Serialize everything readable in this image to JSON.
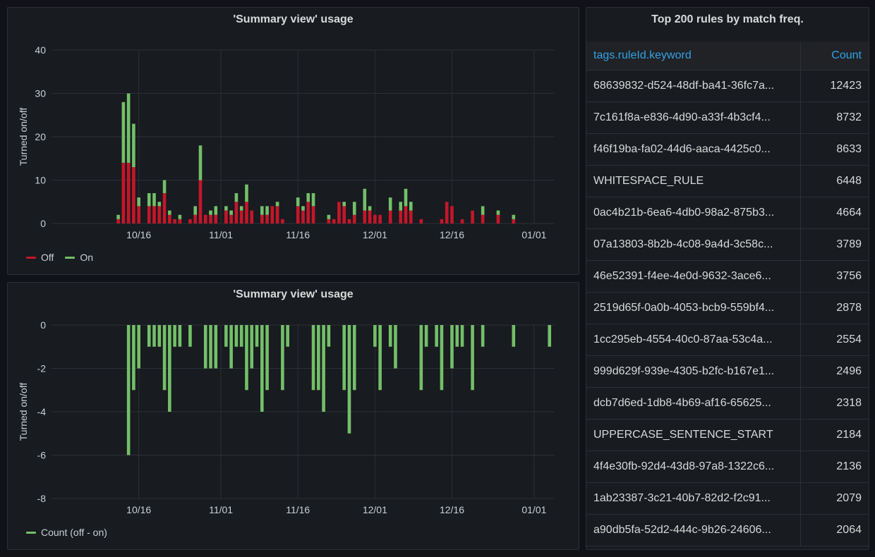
{
  "panels": {
    "top_chart": {
      "title": "'Summary view' usage",
      "ylabel": "Turned on/off",
      "legend": [
        {
          "label": "Off",
          "color": "#c4162a"
        },
        {
          "label": "On",
          "color": "#73bf69"
        }
      ]
    },
    "bottom_chart": {
      "title": "'Summary view' usage",
      "ylabel": "Turned on/off",
      "legend": [
        {
          "label": "Count (off - on)",
          "color": "#73bf69"
        }
      ]
    },
    "table": {
      "title": "Top 200 rules by match freq.",
      "columns": [
        "tags.ruleId.keyword",
        "Count"
      ],
      "rows": [
        [
          "68639832-d524-48df-ba41-36fc7a...",
          "12423"
        ],
        [
          "7c161f8a-e836-4d90-a33f-4b3cf4...",
          "8732"
        ],
        [
          "f46f19ba-fa02-44d6-aaca-4425c0...",
          "8633"
        ],
        [
          "WHITESPACE_RULE",
          "6448"
        ],
        [
          "0ac4b21b-6ea6-4db0-98a2-875b3...",
          "4664"
        ],
        [
          "07a13803-8b2b-4c08-9a4d-3c58c...",
          "3789"
        ],
        [
          "46e52391-f4ee-4e0d-9632-3ace6...",
          "3756"
        ],
        [
          "2519d65f-0a0b-4053-bcb9-559bf4...",
          "2878"
        ],
        [
          "1cc295eb-4554-40c0-87aa-53c4a...",
          "2554"
        ],
        [
          "999d629f-939e-4305-b2fc-b167e1...",
          "2496"
        ],
        [
          "dcb7d6ed-1db8-4b69-af16-65625...",
          "2318"
        ],
        [
          "UPPERCASE_SENTENCE_START",
          "2184"
        ],
        [
          "4f4e30fb-92d4-43d8-97a8-1322c6...",
          "2136"
        ],
        [
          "1ab23387-3c21-40b7-82d2-f2c91...",
          "2079"
        ],
        [
          "a90db5fa-52d2-444c-9b26-24606...",
          "2064"
        ]
      ]
    }
  },
  "chart_data": [
    {
      "type": "bar",
      "stacked": true,
      "title": "'Summary view' usage",
      "ylabel": "Turned on/off",
      "ylim": [
        0,
        40
      ],
      "yticks": [
        0,
        10,
        20,
        30,
        40
      ],
      "x_tick_labels": [
        "10/16",
        "11/01",
        "11/16",
        "12/01",
        "12/16",
        "01/01"
      ],
      "x_tick_days": [
        17,
        33,
        48,
        63,
        78,
        94
      ],
      "x_day_range": [
        0,
        98
      ],
      "grid": true,
      "legend_position": "bottom-left",
      "x_days": [
        13,
        14,
        15,
        16,
        17,
        19,
        20,
        21,
        22,
        23,
        24,
        25,
        27,
        28,
        29,
        30,
        31,
        32,
        34,
        35,
        36,
        37,
        38,
        39,
        41,
        42,
        43,
        44,
        45,
        46,
        48,
        49,
        50,
        51,
        52,
        54,
        55,
        56,
        57,
        58,
        59,
        61,
        62,
        63,
        64,
        65,
        66,
        67,
        68,
        69,
        70,
        71,
        72,
        73,
        75,
        76,
        77,
        78,
        80,
        82,
        84,
        87,
        90
      ],
      "series": [
        {
          "name": "Off",
          "color": "#c4162a",
          "values": [
            1,
            14,
            14,
            13,
            4,
            4,
            4,
            4,
            7,
            2,
            1,
            1,
            1,
            2,
            10,
            2,
            2,
            2,
            3,
            2,
            5,
            3,
            5,
            3,
            2,
            2,
            4,
            4,
            1,
            0,
            4,
            3,
            5,
            4,
            0,
            1,
            1,
            5,
            4,
            1,
            2,
            3,
            3,
            2,
            2,
            0,
            3,
            0,
            3,
            4,
            3,
            0,
            1,
            0,
            0,
            1,
            5,
            4,
            1,
            3,
            2,
            2,
            1
          ]
        },
        {
          "name": "On",
          "color": "#73bf69",
          "values": [
            1,
            14,
            16,
            10,
            2,
            3,
            3,
            1,
            3,
            1,
            0,
            1,
            0,
            2,
            8,
            0,
            1,
            2,
            1,
            1,
            2,
            1,
            4,
            0,
            2,
            2,
            0,
            1,
            0,
            0,
            2,
            1,
            2,
            3,
            0,
            1,
            0,
            0,
            1,
            0,
            3,
            5,
            1,
            0,
            0,
            0,
            3,
            0,
            2,
            4,
            2,
            0,
            0,
            0,
            0,
            0,
            0,
            0,
            0,
            0,
            2,
            1,
            1
          ]
        }
      ]
    },
    {
      "type": "bar",
      "title": "'Summary view' usage",
      "ylabel": "Turned on/off",
      "ylim": [
        -8,
        0
      ],
      "yticks": [
        0,
        -2,
        -4,
        -6,
        -8
      ],
      "x_tick_labels": [
        "10/16",
        "11/01",
        "11/16",
        "12/01",
        "12/16",
        "01/01"
      ],
      "x_tick_days": [
        17,
        33,
        48,
        63,
        78,
        94
      ],
      "x_day_range": [
        0,
        98
      ],
      "grid": true,
      "legend_position": "bottom-left",
      "series": [
        {
          "name": "Count (off - on)",
          "color": "#73bf69",
          "x_days": [
            15,
            16,
            17,
            19,
            20,
            21,
            22,
            23,
            24,
            25,
            27,
            30,
            31,
            32,
            34,
            35,
            36,
            37,
            38,
            39,
            40,
            41,
            42,
            45,
            46,
            51,
            52,
            53,
            54,
            57,
            58,
            59,
            63,
            64,
            66,
            67,
            72,
            73,
            75,
            76,
            78,
            79,
            80,
            82,
            84,
            90,
            97
          ],
          "values": [
            -6,
            -3,
            -2,
            -1,
            -1,
            -1,
            -3,
            -4,
            -1,
            -1,
            -1,
            -2,
            -2,
            -2,
            -1,
            -2,
            -1,
            -1,
            -3,
            -2,
            -1,
            -4,
            -3,
            -3,
            -1,
            -3,
            -3,
            -4,
            -1,
            -3,
            -5,
            -3,
            -1,
            -3,
            -1,
            -2,
            -3,
            -1,
            -1,
            -3,
            -2,
            -1,
            -1,
            -3,
            -1,
            -1,
            -1
          ]
        }
      ]
    }
  ]
}
